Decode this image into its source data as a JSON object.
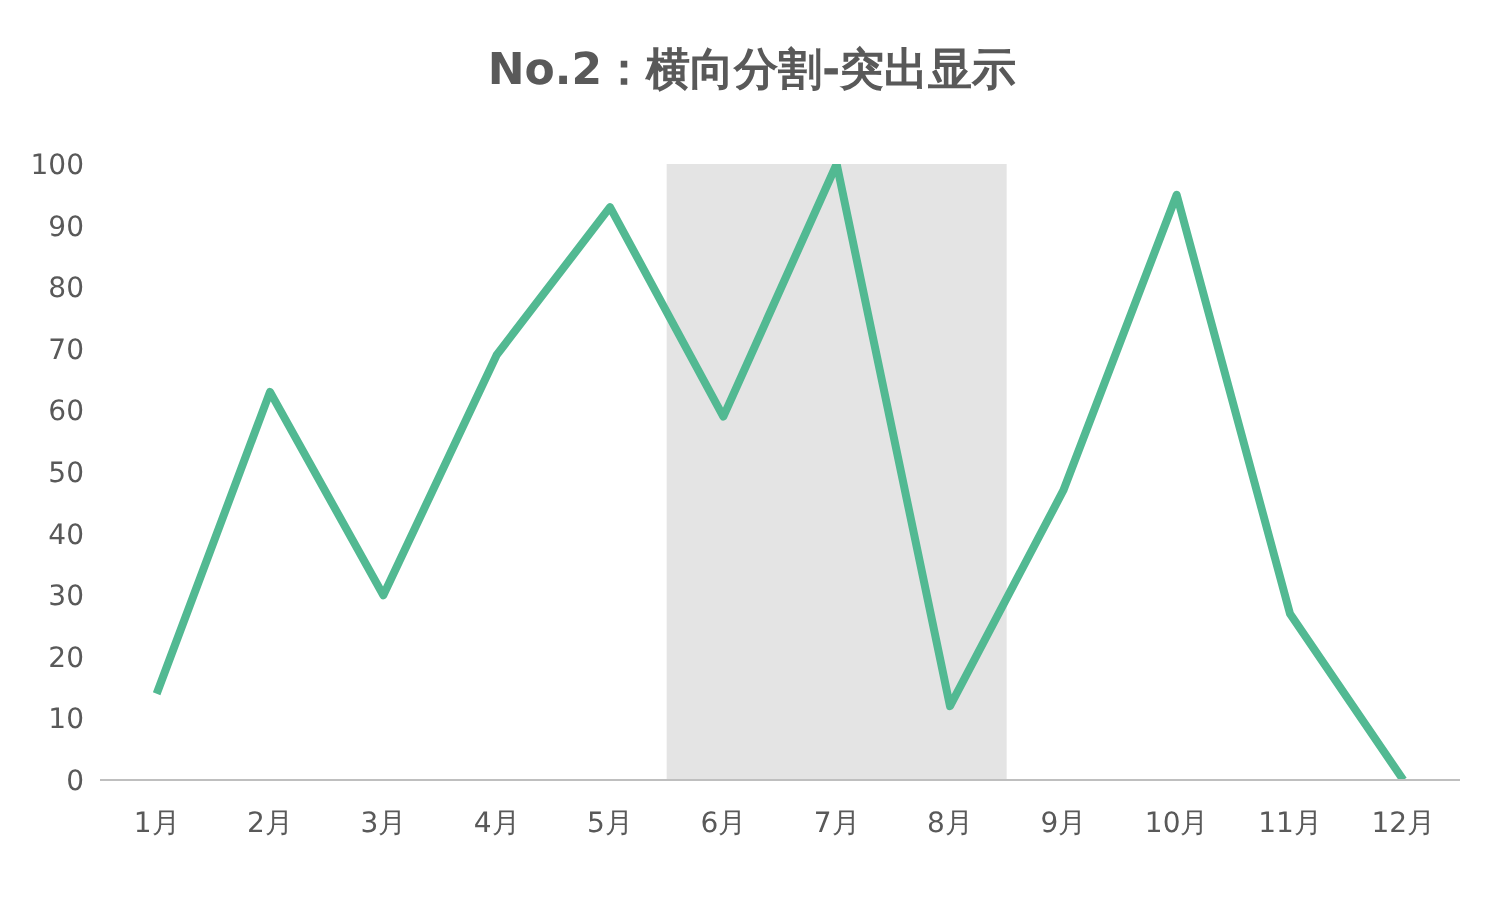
{
  "chart_data": {
    "type": "line",
    "title": "No.2：横向分割-突出显示",
    "categories": [
      "1月",
      "2月",
      "3月",
      "4月",
      "5月",
      "6月",
      "7月",
      "8月",
      "9月",
      "10月",
      "11月",
      "12月"
    ],
    "series": [
      {
        "color": "#52b992",
        "values": [
          14,
          63,
          30,
          69,
          93,
          59,
          100,
          12,
          47,
          95,
          27,
          0
        ]
      }
    ],
    "ylim": [
      0,
      100
    ],
    "yticks": [
      0,
      10,
      20,
      30,
      40,
      50,
      60,
      70,
      80,
      90,
      100
    ],
    "bands": [
      {
        "axis": "x",
        "from": "6月",
        "to": "8月",
        "color": "#e4e4e4"
      }
    ],
    "grid": false,
    "legend": false,
    "marker": "none",
    "line_style": "solid"
  }
}
